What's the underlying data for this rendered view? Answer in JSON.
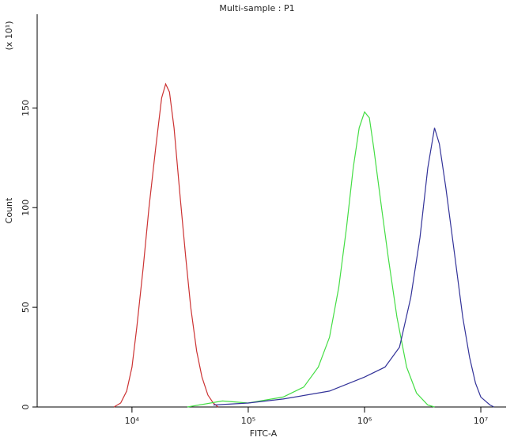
{
  "chart_data": {
    "type": "line",
    "title": "Multi-sample : P1",
    "x_label": "FITC-A",
    "y_label": "Count",
    "y_multiplier": "(x 10¹)",
    "x_log": true,
    "xlim": [
      1530,
      16500000
    ],
    "ylim": [
      0,
      197
    ],
    "xticks": [
      {
        "value": 10000,
        "label": "10⁴"
      },
      {
        "value": 100000,
        "label": "10⁵"
      },
      {
        "value": 1000000,
        "label": "10⁶"
      },
      {
        "value": 10000000,
        "label": "10⁷"
      }
    ],
    "yticks": [
      0,
      50,
      100,
      150
    ],
    "series": [
      {
        "color": "#cc3333",
        "x": [
          7000,
          8000,
          9000,
          10000,
          11000,
          12500,
          14000,
          16000,
          18000,
          19500,
          21000,
          23000,
          26000,
          29000,
          32000,
          36000,
          40000,
          45000,
          50000,
          55000
        ],
        "values": [
          0,
          2,
          8,
          20,
          40,
          70,
          100,
          130,
          155,
          162,
          158,
          140,
          105,
          75,
          50,
          28,
          15,
          6,
          2,
          0
        ]
      },
      {
        "color": "#44dd44",
        "x": [
          30000,
          60000,
          100000,
          200000,
          300000,
          400000,
          500000,
          600000,
          700000,
          800000,
          900000,
          1000000,
          1100000,
          1200000,
          1400000,
          1600000,
          1900000,
          2300000,
          2800000,
          3500000,
          4000000
        ],
        "values": [
          0,
          3,
          2,
          5,
          10,
          20,
          35,
          60,
          90,
          120,
          140,
          148,
          145,
          130,
          100,
          75,
          45,
          20,
          7,
          1,
          0
        ]
      },
      {
        "color": "#333399",
        "x": [
          50000,
          100000,
          200000,
          500000,
          1000000,
          1500000,
          2000000,
          2500000,
          3000000,
          3500000,
          4000000,
          4400000,
          5000000,
          6000000,
          7000000,
          8000000,
          9000000,
          10000000,
          12000000,
          13000000
        ],
        "values": [
          1,
          2,
          4,
          8,
          15,
          20,
          30,
          55,
          85,
          120,
          140,
          132,
          110,
          75,
          45,
          25,
          12,
          5,
          1,
          0
        ]
      }
    ]
  }
}
